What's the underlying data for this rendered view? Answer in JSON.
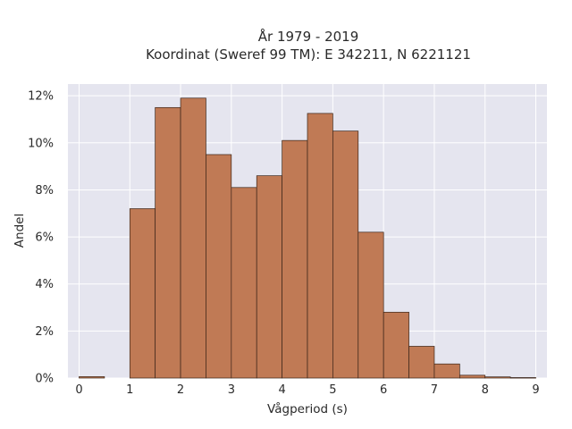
{
  "chart_data": {
    "type": "bar",
    "title_line1": "År 1979 - 2019",
    "title_line2": "Koordinat (Sweref 99 TM): E 342211, N 6221121",
    "xlabel": "Vågperiod (s)",
    "ylabel": "Andel",
    "bin_width": 0.5,
    "bins": [
      {
        "x0": 0.0,
        "value": 0.06
      },
      {
        "x0": 0.5,
        "value": 0.0
      },
      {
        "x0": 1.0,
        "value": 7.2
      },
      {
        "x0": 1.5,
        "value": 11.5
      },
      {
        "x0": 2.0,
        "value": 11.9
      },
      {
        "x0": 2.5,
        "value": 9.5
      },
      {
        "x0": 3.0,
        "value": 8.1
      },
      {
        "x0": 3.5,
        "value": 8.6
      },
      {
        "x0": 4.0,
        "value": 10.1
      },
      {
        "x0": 4.5,
        "value": 11.25
      },
      {
        "x0": 5.0,
        "value": 10.5
      },
      {
        "x0": 5.5,
        "value": 6.2
      },
      {
        "x0": 6.0,
        "value": 2.8
      },
      {
        "x0": 6.5,
        "value": 1.35
      },
      {
        "x0": 7.0,
        "value": 0.6
      },
      {
        "x0": 7.5,
        "value": 0.12
      },
      {
        "x0": 8.0,
        "value": 0.05
      },
      {
        "x0": 8.5,
        "value": 0.02
      }
    ],
    "xlim": [
      -0.22,
      9.22
    ],
    "ylim": [
      0,
      12.5
    ],
    "xticks": [
      0,
      1,
      2,
      3,
      4,
      5,
      6,
      7,
      8,
      9
    ],
    "xtick_labels": [
      "0",
      "1",
      "2",
      "3",
      "4",
      "5",
      "6",
      "7",
      "8",
      "9"
    ],
    "yticks": [
      0,
      2,
      4,
      6,
      8,
      10,
      12
    ],
    "ytick_labels": [
      "0%",
      "2%",
      "4%",
      "6%",
      "8%",
      "10%",
      "12%"
    ],
    "bar_color": "#c07a55",
    "bar_edge_color": "#3a2418",
    "plot_background": "#e5e5ef",
    "grid": true,
    "grid_color": "#ffffff",
    "legend": "none"
  }
}
